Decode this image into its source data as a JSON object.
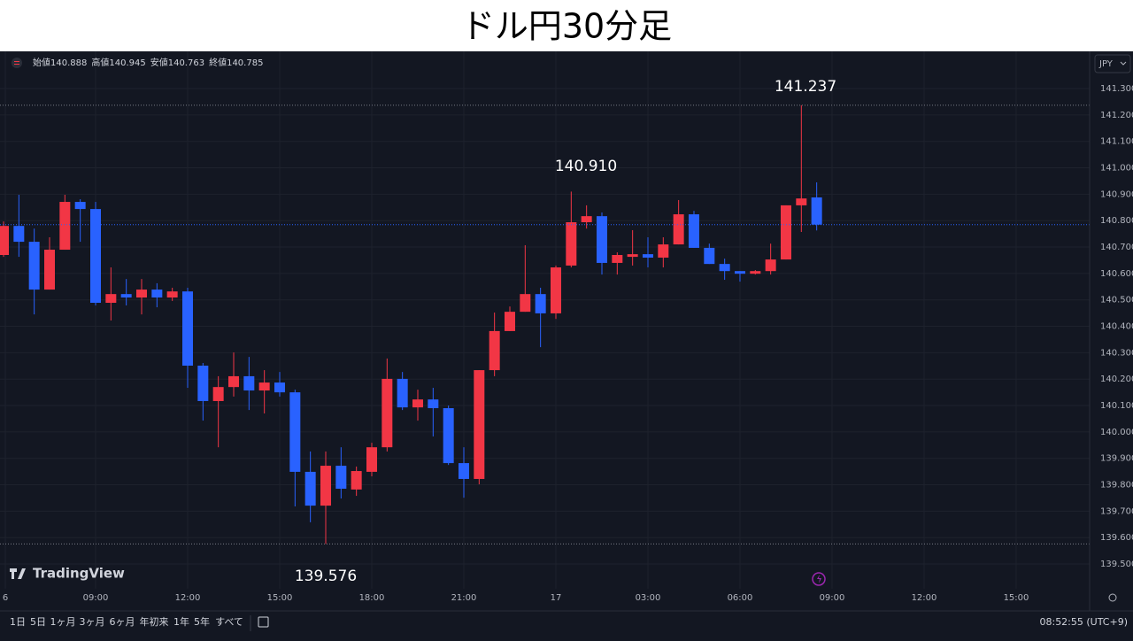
{
  "header": {
    "title": "ドル円30分足"
  },
  "brand": "TradingView",
  "toolbar": {
    "ranges": [
      "1日",
      "5日",
      "1ヶ月",
      "3ヶ月",
      "6ヶ月",
      "年初来",
      "1年",
      "5年",
      "すべて"
    ],
    "clock": "08:52:55 (UTC+9)"
  },
  "chart_data": {
    "type": "candlestick",
    "currency": "JPY",
    "legend_labels": [
      "始値",
      "高値",
      "安値",
      "終値"
    ],
    "annotations": [
      "141.237",
      "140.910",
      "139.576"
    ],
    "x_labels": [
      "6",
      "09:00",
      "12:00",
      "15:00",
      "18:00",
      "21:00",
      "17",
      "03:00",
      "06:00",
      "09:00",
      "12:00",
      "15:00"
    ],
    "up_color": "#f23645",
    "down_color": "#2962ff",
    "candles": {
      "open": [
        140.67,
        140.78,
        140.72,
        140.539,
        140.69,
        140.871,
        140.844,
        140.489,
        140.522,
        140.509,
        140.539,
        140.509,
        140.532,
        140.251,
        140.117,
        140.17,
        140.211,
        140.157,
        140.187,
        140.15,
        139.849,
        139.721,
        139.872,
        139.782,
        139.849,
        139.942,
        140.201,
        140.093,
        140.123,
        140.09,
        139.882,
        139.822,
        140.234,
        140.382,
        140.455,
        140.522,
        140.449,
        140.63,
        140.794,
        140.817,
        140.64,
        140.663,
        140.673,
        140.66,
        140.71,
        140.824,
        140.697,
        140.636,
        140.609,
        140.599,
        140.609,
        140.653,
        140.858,
        140.888
      ],
      "high": [
        140.797,
        140.898,
        140.77,
        140.737,
        140.898,
        140.881,
        140.871,
        140.623,
        140.579,
        140.579,
        140.563,
        140.546,
        140.546,
        140.261,
        140.211,
        140.301,
        140.284,
        140.234,
        140.227,
        140.16,
        139.926,
        139.926,
        139.942,
        139.869,
        139.959,
        140.278,
        140.227,
        140.16,
        140.167,
        140.1,
        139.942,
        140.234,
        140.452,
        140.475,
        140.707,
        140.546,
        140.63,
        140.91,
        140.858,
        140.831,
        140.68,
        140.764,
        140.737,
        140.737,
        140.878,
        140.837,
        140.713,
        140.656,
        140.609,
        140.613,
        140.713,
        140.858,
        141.237,
        140.945
      ],
      "low": [
        140.663,
        140.663,
        140.445,
        140.539,
        140.69,
        140.72,
        140.479,
        140.422,
        140.479,
        140.445,
        140.472,
        140.496,
        140.167,
        140.043,
        139.942,
        140.134,
        140.083,
        140.07,
        140.134,
        139.718,
        139.658,
        139.576,
        139.748,
        139.758,
        139.832,
        139.926,
        140.083,
        140.043,
        139.983,
        139.875,
        139.751,
        139.802,
        140.211,
        140.382,
        140.455,
        140.321,
        140.428,
        140.623,
        140.77,
        140.596,
        140.596,
        140.63,
        140.623,
        140.623,
        140.71,
        140.697,
        140.636,
        140.576,
        140.569,
        140.596,
        140.596,
        140.653,
        140.757,
        140.763
      ],
      "close": [
        140.78,
        140.72,
        140.539,
        140.69,
        140.871,
        140.844,
        140.489,
        140.522,
        140.509,
        140.539,
        140.509,
        140.532,
        140.251,
        140.117,
        140.17,
        140.211,
        140.157,
        140.187,
        140.15,
        139.849,
        139.721,
        139.872,
        139.785,
        139.852,
        139.942,
        140.201,
        140.093,
        140.123,
        140.09,
        139.882,
        139.822,
        140.234,
        140.382,
        140.455,
        140.522,
        140.449,
        140.623,
        140.794,
        140.817,
        140.64,
        140.67,
        140.673,
        140.66,
        140.71,
        140.824,
        140.697,
        140.636,
        140.609,
        140.599,
        140.609,
        140.653,
        140.858,
        140.884,
        140.785
      ]
    },
    "ylim": [
      139.423,
      141.441
    ],
    "yticks": [
      {
        "value": 141.3,
        "label": "141.300"
      },
      {
        "value": 141.2,
        "label": "141.200"
      },
      {
        "value": 141.1,
        "label": "141.100"
      },
      {
        "value": 141.0,
        "label": "141.000"
      },
      {
        "value": 140.9,
        "label": "140.900"
      },
      {
        "value": 140.8,
        "label": "140.800"
      },
      {
        "value": 140.7,
        "label": "140.700"
      },
      {
        "value": 140.6,
        "label": "140.600"
      },
      {
        "value": 140.5,
        "label": "140.500"
      },
      {
        "value": 140.4,
        "label": "140.400"
      },
      {
        "value": 140.3,
        "label": "140.300"
      },
      {
        "value": 140.2,
        "label": "140.200"
      },
      {
        "value": 140.1,
        "label": "140.100"
      },
      {
        "value": 140.0,
        "label": "140.000"
      },
      {
        "value": 139.9,
        "label": "139.900"
      },
      {
        "value": 139.8,
        "label": "139.800"
      },
      {
        "value": 139.7,
        "label": "139.700"
      },
      {
        "value": 139.6,
        "label": "139.600"
      },
      {
        "value": 139.5,
        "label": "139.500"
      }
    ],
    "grid": true
  }
}
